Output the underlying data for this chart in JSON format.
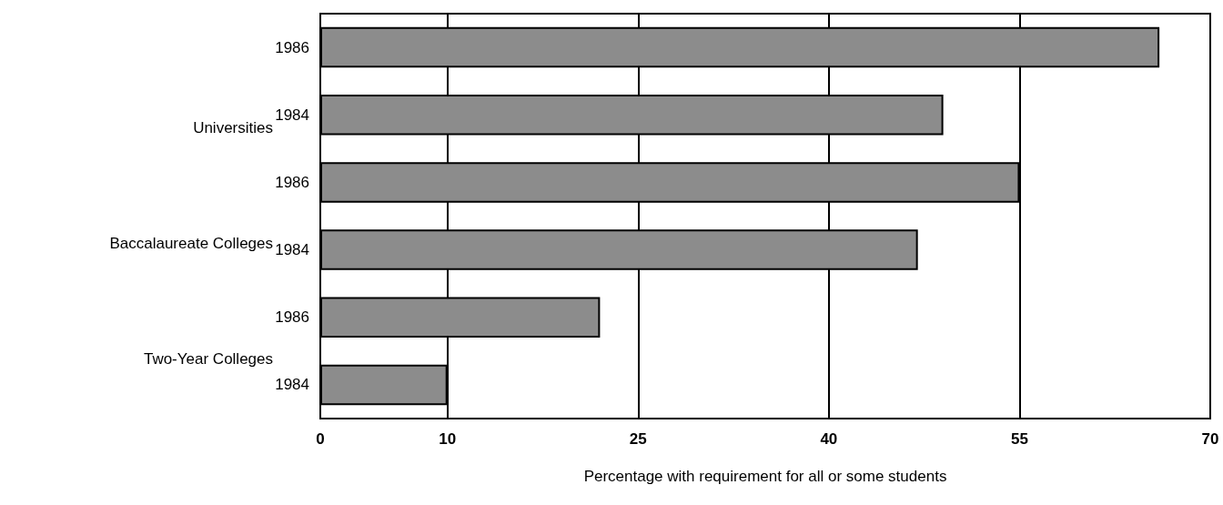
{
  "chart_data": {
    "type": "bar",
    "orientation": "horizontal",
    "xlabel": "Percentage with requirement for all or some students",
    "categories": [
      "1986",
      "1984",
      "1986",
      "1984",
      "1986",
      "1984"
    ],
    "values": [
      66,
      49,
      55,
      47,
      22,
      10
    ],
    "color": "#8c8c8c",
    "annotations": [
      "Universities",
      "Baccalaureate Colleges",
      "Two-Year Colleges"
    ],
    "xlim": [
      0,
      70
    ],
    "xticks": [
      0,
      10,
      25,
      40,
      55,
      70
    ],
    "grid": "x"
  }
}
